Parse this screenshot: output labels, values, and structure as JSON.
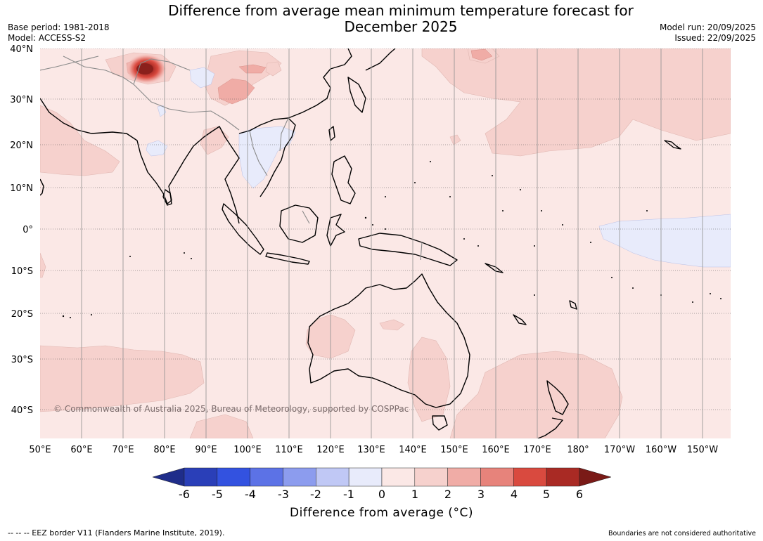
{
  "title": {
    "line1": "Difference from average mean minimum temperature forecast for",
    "line2": "December 2025"
  },
  "header_left": {
    "base_period": "Base period: 1981-2018",
    "model": "Model: ACCESS-S2"
  },
  "header_right": {
    "model_run": "Model run: 20/09/2025",
    "issued": "Issued: 22/09/2025"
  },
  "map": {
    "copyright": "© Commonwealth of Australia 2025, Bureau of Meteorology, supported by COSPPac",
    "lat_labels": [
      "40°N",
      "30°N",
      "20°N",
      "10°N",
      "0°",
      "10°S",
      "20°S",
      "30°S",
      "40°S"
    ],
    "lon_labels": [
      "50°E",
      "60°E",
      "70°E",
      "80°E",
      "90°E",
      "100°E",
      "110°E",
      "120°E",
      "130°E",
      "140°E",
      "150°E",
      "160°E",
      "170°E",
      "180°",
      "170°W",
      "160°W",
      "150°W"
    ]
  },
  "colorbar": {
    "title": "Difference from average (°C)",
    "ticks": [
      "-6",
      "-5",
      "-4",
      "-3",
      "-2",
      "-1",
      "0",
      "1",
      "2",
      "3",
      "4",
      "5",
      "6"
    ],
    "colors": [
      "#1f2d8a",
      "#2a3fb8",
      "#3352e0",
      "#5c72e6",
      "#8c9cee",
      "#c0c8f5",
      "#e8ebfb",
      "#fbe8e6",
      "#f6d1cd",
      "#f0aca6",
      "#e7837b",
      "#d94a3f",
      "#a92a24",
      "#7a1a17"
    ]
  },
  "footer": {
    "eez_note": "--  --  -- EEZ border V11 (Flanders Marine Institute, 2019).",
    "boundaries_note": "Boundaries are not considered authoritative"
  }
}
